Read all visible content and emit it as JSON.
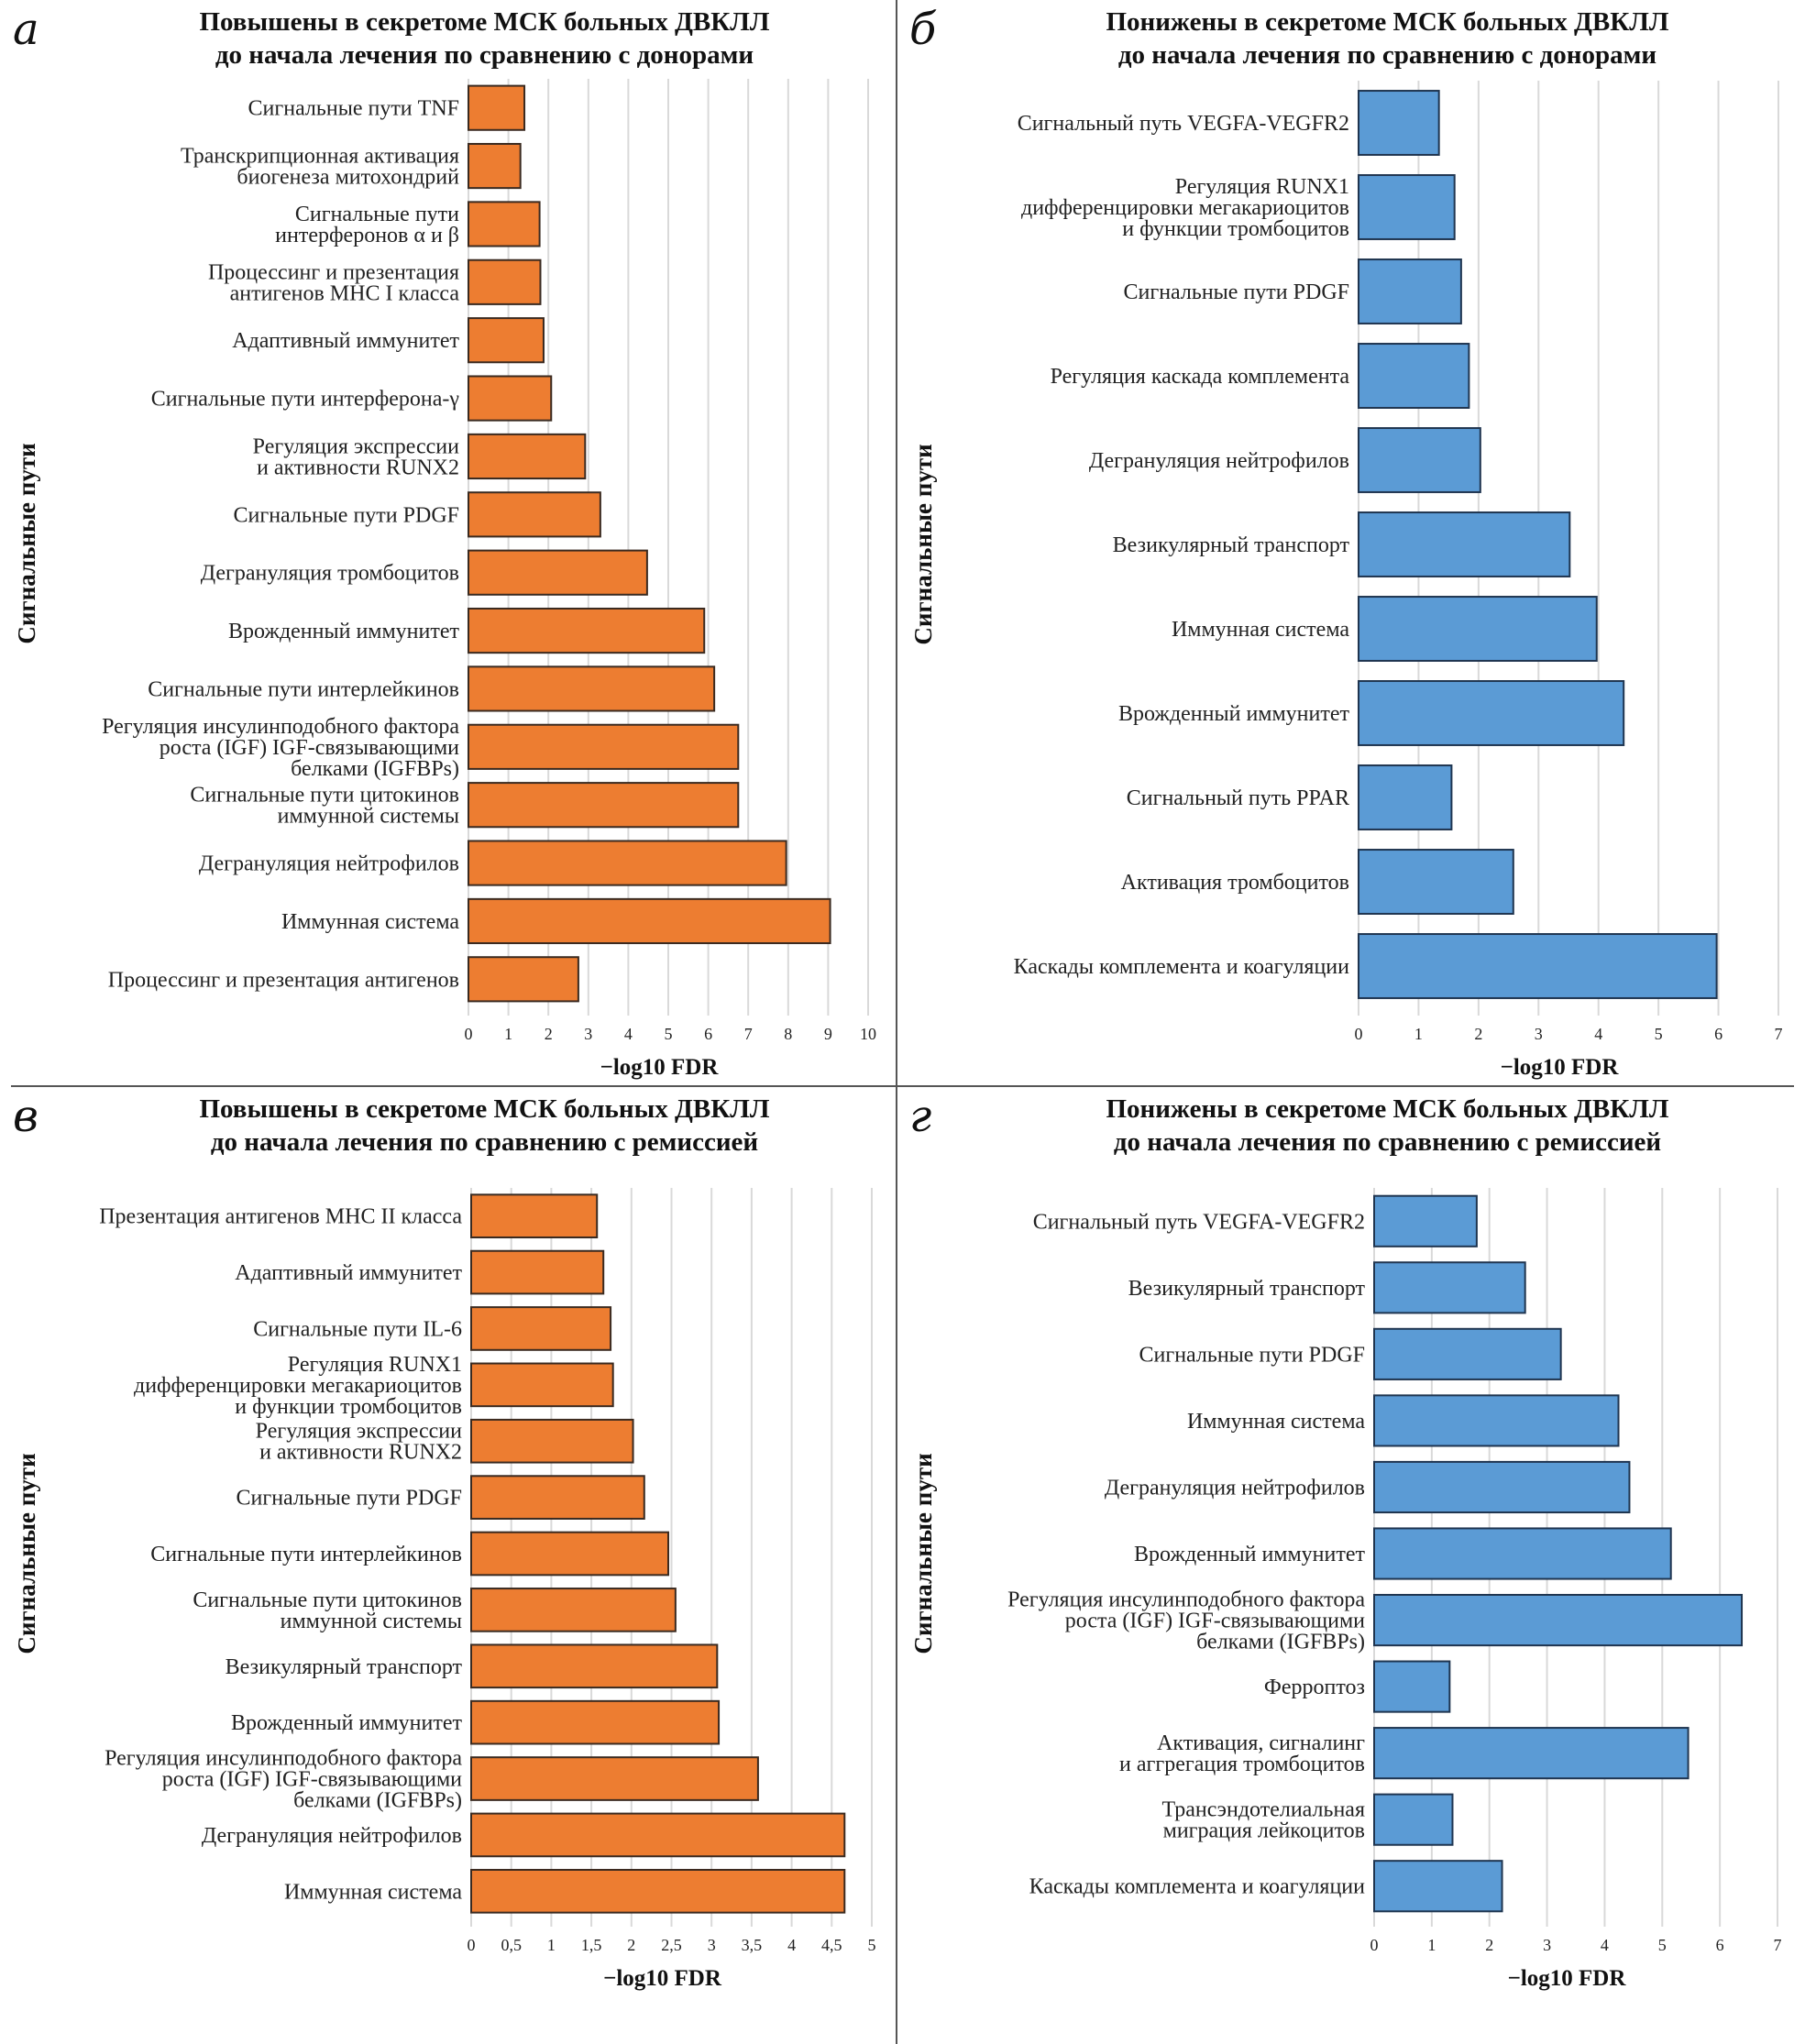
{
  "colors": {
    "up": "#ED7D31",
    "down": "#5B9BD5",
    "bar_edge_up": "#3a2a20",
    "bar_edge_down": "#1f3550",
    "grid": "#d9d9d9"
  },
  "chart_data": [
    {
      "id": "a",
      "type": "bar",
      "orientation": "horizontal",
      "panel_letter": "а",
      "title": [
        "Повышены в секретоме МСК больных ДВКЛЛ",
        "до начала лечения по сравнению с донорами"
      ],
      "xlabel": "−log10 FDR",
      "ylabel": "Сигнальные пути",
      "xlim": [
        0,
        10
      ],
      "xticks": [
        "0",
        "1",
        "2",
        "3",
        "4",
        "5",
        "6",
        "7",
        "8",
        "9",
        "10"
      ],
      "grid": true,
      "color_key": "up",
      "categories": [
        [
          "Сигнальные пути TNF"
        ],
        [
          "Транскрипционная активация",
          "биогенеза митохондрий"
        ],
        [
          "Сигнальные пути",
          "интерферонов α и β"
        ],
        [
          "Процессинг и презентация",
          "антигенов MHC I класса"
        ],
        [
          "Адаптивный иммунитет"
        ],
        [
          "Сигнальные пути интерферона-γ"
        ],
        [
          "Регуляция экспрессии",
          "и активности RUNX2"
        ],
        [
          "Сигнальные пути PDGF"
        ],
        [
          "Дегрануляция тромбоцитов"
        ],
        [
          "Врожденный иммунитет"
        ],
        [
          "Сигнальные пути интерлейкинов"
        ],
        [
          "Регуляция инсулинподобного фактора",
          "роста (IGF) IGF-связывающими",
          "белками (IGFBPs)"
        ],
        [
          "Сигнальные пути цитокинов",
          "иммунной системы"
        ],
        [
          "Дегрануляция нейтрофилов"
        ],
        [
          "Иммунная система"
        ],
        [
          "Процессинг и презентация антигенов"
        ]
      ],
      "values": [
        1.4,
        1.3,
        1.78,
        1.8,
        1.88,
        2.07,
        2.92,
        3.3,
        4.47,
        5.9,
        6.15,
        6.75,
        6.75,
        7.95,
        9.05,
        2.75
      ]
    },
    {
      "id": "b",
      "type": "bar",
      "orientation": "horizontal",
      "panel_letter": "б",
      "title": [
        "Понижены в секретоме МСК больных ДВКЛЛ",
        "до начала лечения по сравнению с донорами"
      ],
      "xlabel": "−log10 FDR",
      "ylabel": "Сигнальные пути",
      "xlim": [
        0,
        7
      ],
      "xticks": [
        "0",
        "1",
        "2",
        "3",
        "4",
        "5",
        "6",
        "7"
      ],
      "grid": true,
      "color_key": "down",
      "categories": [
        [
          "Сигнальный путь VEGFA-VEGFR2"
        ],
        [
          "Регуляция RUNX1",
          "дифференцировки мегакариоцитов",
          "и функции тромбоцитов"
        ],
        [
          "Сигнальные пути PDGF"
        ],
        [
          "Регуляция каскада комплемента"
        ],
        [
          "Дегрануляция нейтрофилов"
        ],
        [
          "Везикулярный транспорт"
        ],
        [
          "Иммунная система"
        ],
        [
          "Врожденный иммунитет"
        ],
        [
          "Сигнальный путь PPAR"
        ],
        [
          "Активация тромбоцитов"
        ],
        [
          "Каскады комплемента и коагуляции"
        ]
      ],
      "values": [
        1.34,
        1.6,
        1.71,
        1.84,
        2.03,
        3.52,
        3.97,
        4.42,
        1.55,
        2.58,
        5.97
      ]
    },
    {
      "id": "c",
      "type": "bar",
      "orientation": "horizontal",
      "panel_letter": "в",
      "title": [
        "Повышены в секретоме МСК больных ДВКЛЛ",
        "до начала лечения по сравнению с ремиссией"
      ],
      "xlabel": "−log10 FDR",
      "ylabel": "Сигнальные пути",
      "xlim": [
        0,
        5
      ],
      "xticks": [
        "0",
        "0,5",
        "1",
        "1,5",
        "2",
        "2,5",
        "3",
        "3,5",
        "4",
        "4,5",
        "5"
      ],
      "grid": true,
      "color_key": "up",
      "categories": [
        [
          "Презентация антигенов MHC II класса"
        ],
        [
          "Адаптивный иммунитет"
        ],
        [
          "Сигнальные пути IL-6"
        ],
        [
          "Регуляция RUNX1",
          "дифференцировки мегакариоцитов",
          "и функции тромбоцитов"
        ],
        [
          "Регуляция экспрессии",
          "и активности RUNX2"
        ],
        [
          "Сигнальные пути PDGF"
        ],
        [
          "Сигнальные пути интерлейкинов"
        ],
        [
          "Сигнальные пути цитокинов",
          "иммунной системы"
        ],
        [
          "Везикулярный транспорт"
        ],
        [
          "Врожденный иммунитет"
        ],
        [
          "Регуляция инсулинподобного фактора",
          "роста (IGF) IGF-связывающими",
          "белками (IGFBPs)"
        ],
        [
          "Дегрануляция нейтрофилов"
        ],
        [
          "Иммунная система"
        ]
      ],
      "values": [
        1.57,
        1.65,
        1.74,
        1.77,
        2.02,
        2.16,
        2.46,
        2.55,
        3.07,
        3.09,
        3.58,
        4.66,
        4.66
      ]
    },
    {
      "id": "d",
      "type": "bar",
      "orientation": "horizontal",
      "panel_letter": "г",
      "title": [
        "Понижены в секретоме МСК больных ДВКЛЛ",
        "до начала лечения по сравнению с ремиссией"
      ],
      "xlabel": "−log10 FDR",
      "ylabel": "Сигнальные пути",
      "xlim": [
        0,
        7
      ],
      "xticks": [
        "0",
        "1",
        "2",
        "3",
        "4",
        "5",
        "6",
        "7"
      ],
      "grid": true,
      "color_key": "down",
      "categories": [
        [
          "Сигнальный путь VEGFA-VEGFR2"
        ],
        [
          "Везикулярный транспорт"
        ],
        [
          "Сигнальные пути PDGF"
        ],
        [
          "Иммунная система"
        ],
        [
          "Дегрануляция нейтрофилов"
        ],
        [
          "Врожденный иммунитет"
        ],
        [
          "Регуляция инсулинподобного фактора",
          "роста (IGF) IGF-связывающими",
          "белками (IGFBPs)"
        ],
        [
          "Ферроптоз"
        ],
        [
          "Активация, сигналинг",
          "и аггрегация тромбоцитов"
        ],
        [
          "Трансэндотелиальная",
          "миграция лейкоцитов"
        ],
        [
          "Каскады комплемента и коагуляции"
        ]
      ],
      "values": [
        1.78,
        2.62,
        3.24,
        4.24,
        4.43,
        5.15,
        6.38,
        1.31,
        5.45,
        1.36,
        2.22
      ]
    }
  ]
}
